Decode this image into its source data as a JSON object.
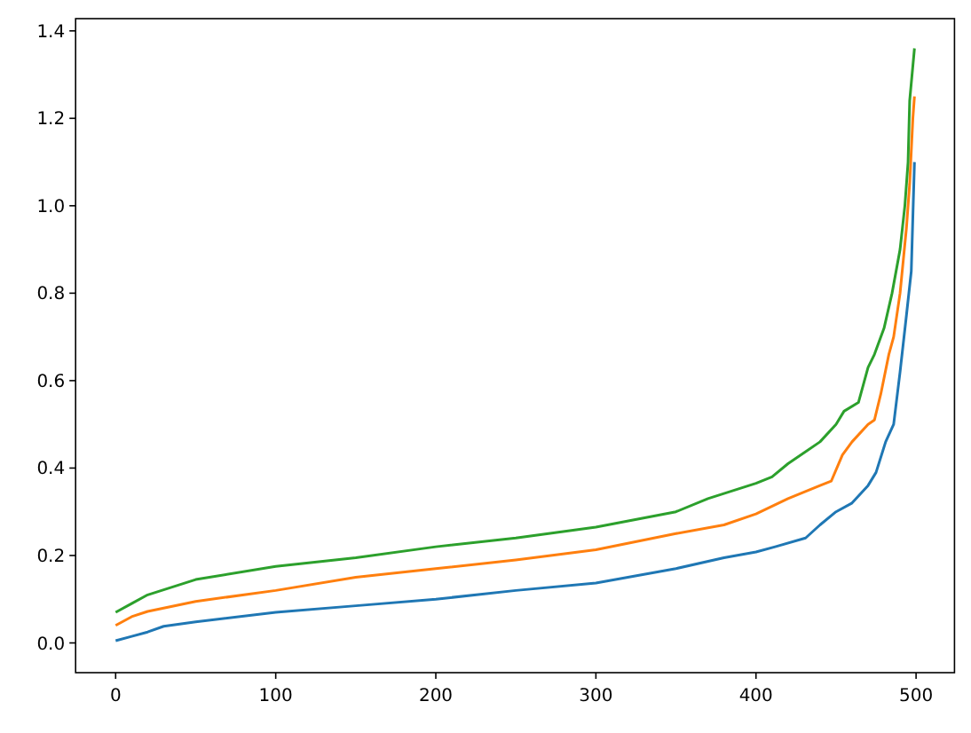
{
  "chart_data": {
    "type": "line",
    "xlim": [
      -25,
      524
    ],
    "ylim": [
      -0.068,
      1.428
    ],
    "xticks": [
      0,
      100,
      200,
      300,
      400,
      500
    ],
    "yticks": [
      {
        "value": 0,
        "label": "0.0"
      },
      {
        "value": 0.2,
        "label": "0.2"
      },
      {
        "value": 0.4,
        "label": "0.4"
      },
      {
        "value": 0.6,
        "label": "0.6"
      },
      {
        "value": 0.8,
        "label": "0.8"
      },
      {
        "value": 1,
        "label": "1.0"
      },
      {
        "value": 1.2,
        "label": "1.2"
      },
      {
        "value": 1.4,
        "label": "1.4"
      }
    ],
    "grid": false,
    "marker": "none",
    "line_style": "solid",
    "series": [
      {
        "color": "#1f77b4",
        "x": [
          0,
          10,
          20,
          30,
          50,
          100,
          150,
          200,
          250,
          300,
          350,
          380,
          400,
          412,
          431,
          440,
          450,
          460,
          470,
          475,
          481,
          486,
          490,
          494,
          497,
          499
        ],
        "values": [
          0.005,
          0.015,
          0.025,
          0.038,
          0.048,
          0.07,
          0.085,
          0.1,
          0.12,
          0.137,
          0.17,
          0.195,
          0.208,
          0.22,
          0.24,
          0.27,
          0.3,
          0.32,
          0.36,
          0.39,
          0.46,
          0.5,
          0.62,
          0.75,
          0.85,
          1.1
        ]
      },
      {
        "color": "#ff7f0e",
        "x": [
          0,
          10,
          20,
          50,
          100,
          150,
          200,
          250,
          300,
          350,
          380,
          400,
          420,
          440,
          447,
          454,
          460,
          470,
          474,
          478,
          483,
          486,
          490,
          494,
          496,
          498,
          499
        ],
        "values": [
          0.04,
          0.06,
          0.072,
          0.095,
          0.12,
          0.15,
          0.17,
          0.19,
          0.213,
          0.25,
          0.27,
          0.295,
          0.33,
          0.36,
          0.37,
          0.43,
          0.46,
          0.5,
          0.51,
          0.57,
          0.66,
          0.7,
          0.8,
          0.95,
          1.05,
          1.2,
          1.25
        ]
      },
      {
        "color": "#2ca02c",
        "x": [
          0,
          10,
          20,
          50,
          100,
          150,
          200,
          250,
          300,
          350,
          370,
          400,
          410,
          420,
          440,
          450,
          455,
          464,
          470,
          474,
          480,
          485,
          490,
          493,
          495,
          496,
          499
        ],
        "values": [
          0.07,
          0.09,
          0.11,
          0.145,
          0.175,
          0.195,
          0.22,
          0.24,
          0.265,
          0.3,
          0.33,
          0.365,
          0.38,
          0.41,
          0.46,
          0.5,
          0.53,
          0.55,
          0.63,
          0.66,
          0.72,
          0.8,
          0.9,
          1.0,
          1.1,
          1.24,
          1.36
        ]
      }
    ]
  }
}
